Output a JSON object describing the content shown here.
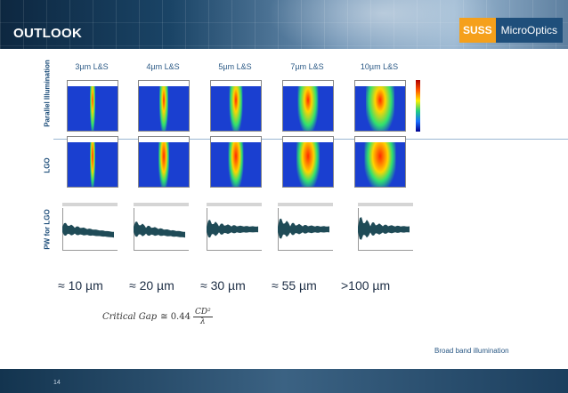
{
  "header": {
    "title": "OUTLOOK",
    "logo": {
      "part1": "SUSS",
      "part2": "MicroOptics"
    }
  },
  "rows": {
    "parallel": "Parallel Illumination",
    "lgo": "LGO",
    "pw": "PW for LGO"
  },
  "columns": [
    {
      "label": "3µm L&S",
      "gap": "≈ 10 µm",
      "beam_width": 0.1
    },
    {
      "label": "4µm L&S",
      "gap": "≈ 20 µm",
      "beam_width": 0.18
    },
    {
      "label": "5µm L&S",
      "gap": "≈ 30 µm",
      "beam_width": 0.26
    },
    {
      "label": "7µm L&S",
      "gap": "≈ 55 µm",
      "beam_width": 0.4
    },
    {
      "label": "10µm L&S",
      "gap": ">100 µm",
      "beam_width": 0.55
    }
  ],
  "formula": {
    "lhs": "Critical Gap",
    "op": "≅ 0.44",
    "num": "CD²",
    "den": "λ"
  },
  "note": "Broad band illumination",
  "footer": {
    "page": "14"
  },
  "colors": {
    "accent": "#f5a01b",
    "brand": "#1f4f7b",
    "sim_bg": "#1a3fd0",
    "pw_fill": "#1f4b57"
  }
}
